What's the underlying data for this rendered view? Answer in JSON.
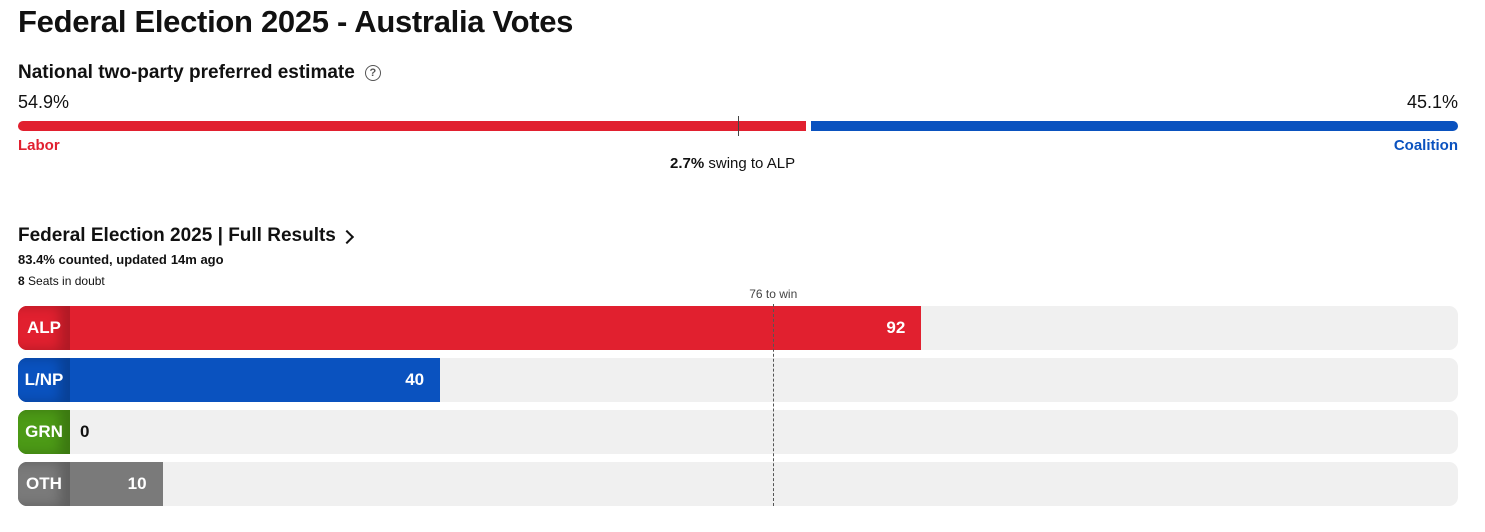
{
  "page_title": "Federal Election 2025 - Australia Votes",
  "tpp": {
    "title": "National two-party preferred estimate",
    "left": {
      "pct_text": "54.9%",
      "value": 54.9,
      "label": "Labor",
      "color": "#e1202f"
    },
    "right": {
      "pct_text": "45.1%",
      "value": 45.1,
      "label": "Coalition",
      "color": "#0a52bf"
    },
    "marker_value": 50,
    "swing_value": "2.7%",
    "swing_text": "swing to ALP"
  },
  "results": {
    "title": "Federal Election 2025 | Full Results",
    "counted": "83.4% counted, updated",
    "updated": "14m ago",
    "doubt_count": "8",
    "doubt_text": "Seats in doubt"
  },
  "chart_data": {
    "type": "bar",
    "orientation": "horizontal",
    "categories": [
      "ALP",
      "L/NP",
      "GRN",
      "OTH"
    ],
    "values": [
      92,
      40,
      0,
      10
    ],
    "colors": [
      "#e1202f",
      "#0a52bf",
      "#4c9a16",
      "#7a7a7a"
    ],
    "xlim": [
      0,
      150
    ],
    "threshold": {
      "value": 76,
      "label": "76 to win"
    }
  }
}
